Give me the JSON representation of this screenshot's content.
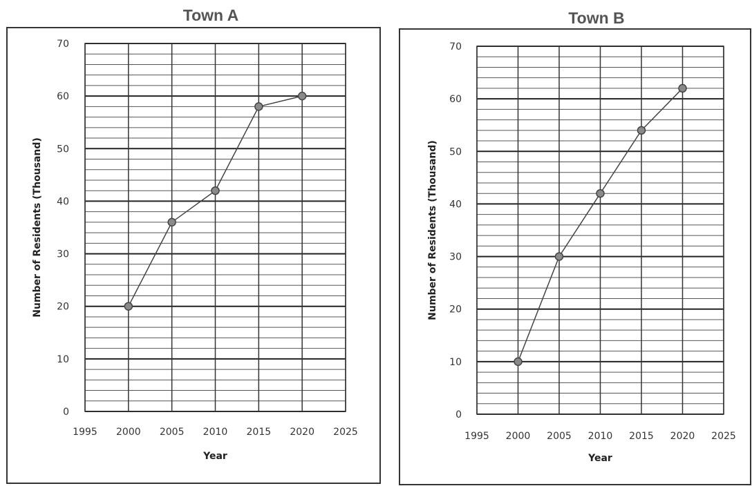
{
  "chart_data": [
    {
      "type": "line",
      "title": "Town A",
      "xlabel": "Year",
      "ylabel": "Number of Residents (Thousand)",
      "xlim": [
        1995,
        2025
      ],
      "ylim": [
        0,
        70
      ],
      "xticks": [
        1995,
        2000,
        2005,
        2010,
        2015,
        2020,
        2025
      ],
      "yticks": [
        0,
        10,
        20,
        30,
        40,
        50,
        60,
        70
      ],
      "grid": true,
      "series": [
        {
          "x": [
            2000,
            2005,
            2010,
            2015,
            2020
          ],
          "y": [
            20,
            36,
            42,
            58,
            60
          ]
        }
      ]
    },
    {
      "type": "line",
      "title": "Town B",
      "xlabel": "Year",
      "ylabel": "Number of Residents (Thousand)",
      "xlim": [
        1995,
        2025
      ],
      "ylim": [
        0,
        70
      ],
      "xticks": [
        1995,
        2000,
        2005,
        2010,
        2015,
        2020,
        2025
      ],
      "yticks": [
        0,
        10,
        20,
        30,
        40,
        50,
        60,
        70
      ],
      "grid": true,
      "series": [
        {
          "x": [
            2000,
            2005,
            2010,
            2015,
            2020
          ],
          "y": [
            10,
            30,
            42,
            54,
            62
          ]
        }
      ]
    }
  ],
  "colors": {
    "line": "#444444",
    "point_fill": "#8a8a8a",
    "grid": "#333333"
  }
}
